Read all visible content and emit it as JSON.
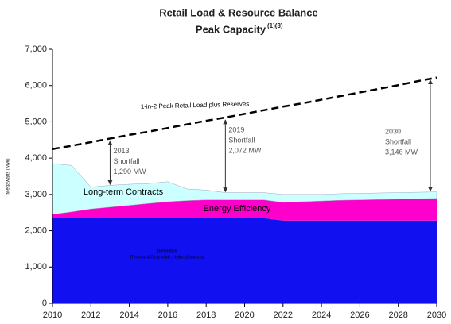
{
  "chart_data": {
    "type": "stacked_area",
    "title": "Retail Load & Resource Balance",
    "subtitle": "Peak Capacity",
    "subtitle_superscript": "(1)(3)",
    "y_label": "Megawatts (MW)",
    "x": [
      2010,
      2011,
      2012,
      2013,
      2014,
      2015,
      2016,
      2017,
      2018,
      2019,
      2020,
      2021,
      2022,
      2023,
      2024,
      2025,
      2026,
      2027,
      2028,
      2029,
      2030
    ],
    "xlim": [
      2010,
      2030
    ],
    "xticks": [
      2010,
      2012,
      2014,
      2016,
      2018,
      2020,
      2022,
      2024,
      2026,
      2028,
      2030
    ],
    "ylim": [
      0,
      7000
    ],
    "yticks": [
      0,
      {
        "value": 1000,
        "label": "1,000"
      },
      {
        "value": 2000,
        "label": "2,000"
      },
      {
        "value": 3000,
        "label": "3,000"
      },
      {
        "value": 4000,
        "label": "4,000"
      },
      {
        "value": 5000,
        "label": "5,000"
      },
      {
        "value": 6000,
        "label": "6,000"
      },
      {
        "value": 7000,
        "label": "7,000"
      }
    ],
    "series": [
      {
        "name": "Generation",
        "subname": "(Thermal & Renewable, Hydro, Contracts)",
        "color": "#1010f0",
        "values": [
          2350,
          2350,
          2350,
          2350,
          2350,
          2350,
          2350,
          2350,
          2350,
          2350,
          2350,
          2350,
          2280,
          2280,
          2280,
          2280,
          2280,
          2280,
          2280,
          2280,
          2280
        ]
      },
      {
        "name": "Energy Efficiency",
        "color": "#ff00cc",
        "values": [
          100,
          170,
          250,
          300,
          350,
          400,
          450,
          480,
          500,
          500,
          500,
          500,
          500,
          520,
          540,
          560,
          570,
          580,
          590,
          600,
          610
        ]
      },
      {
        "name": "Long-term Contracts",
        "color": "#ccffff",
        "values": [
          1400,
          1280,
          600,
          600,
          580,
          550,
          550,
          320,
          270,
          200,
          200,
          200,
          220,
          200,
          180,
          180,
          180,
          180,
          180,
          180,
          180
        ]
      }
    ],
    "line": {
      "name": "1-in-2 Peak Retail Load plus Reserves",
      "color": "#000000",
      "dashed": true,
      "values": [
        4250,
        4340,
        4440,
        4540,
        4640,
        4730,
        4830,
        4930,
        5030,
        5120,
        5220,
        5320,
        5420,
        5510,
        5610,
        5710,
        5810,
        5910,
        6010,
        6120,
        6220
      ]
    },
    "annotations": [
      {
        "x": 2013,
        "text": [
          "2013",
          "Shortfall",
          "1,290 MW"
        ]
      },
      {
        "x": 2019,
        "text": [
          "2019",
          "Shortfall",
          "2,072 MW"
        ]
      },
      {
        "x": 2030,
        "text": [
          "2030",
          "Shortfall",
          "3,146 MW"
        ]
      }
    ]
  }
}
